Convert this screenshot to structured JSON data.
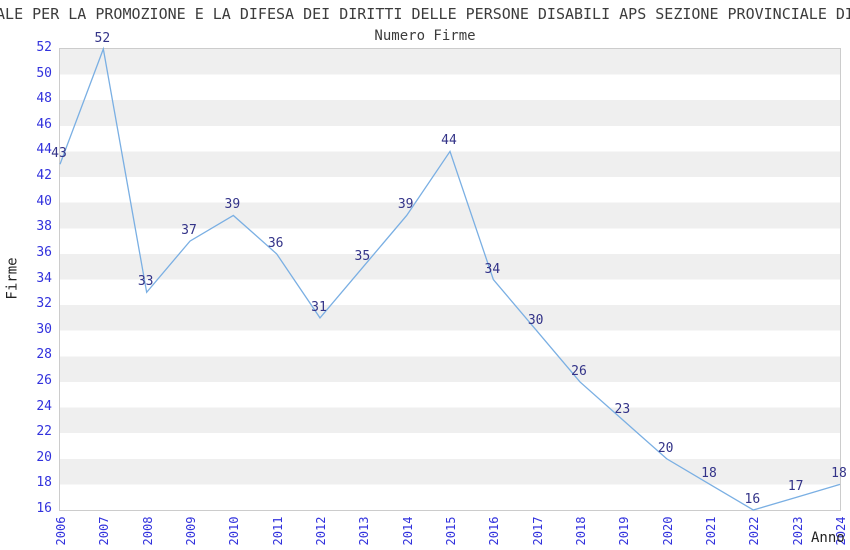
{
  "header": {
    "title": "ALE PER LA PROMOZIONE E LA DIFESA DEI DIRITTI DELLE PERSONE DISABILI APS SEZIONE PROVINCIALE DI",
    "subtitle": "Numero Firme"
  },
  "chart_data": {
    "type": "line",
    "title": "Numero Firme",
    "xlabel": "Anno",
    "ylabel": "Firme",
    "x": [
      2006,
      2007,
      2008,
      2009,
      2010,
      2011,
      2012,
      2013,
      2014,
      2015,
      2016,
      2017,
      2018,
      2019,
      2020,
      2021,
      2022,
      2023,
      2024
    ],
    "series": [
      {
        "name": "Numero Firme",
        "values": [
          43,
          52,
          33,
          37,
          39,
          36,
          31,
          35,
          39,
          44,
          34,
          30,
          26,
          23,
          20,
          18,
          16,
          17,
          18
        ]
      }
    ],
    "point_labels_visible": true,
    "ylim": [
      16,
      52
    ],
    "ytick_step": 2,
    "grid": "horizontal-bands",
    "legend_position": "none",
    "colors": {
      "line": "#7aafe3",
      "point_label": "#333388",
      "tick_label": "#3232dd",
      "band_gray": "#efefef",
      "band_white": "#ffffff",
      "plot_border": "#cccccc",
      "title_text": "#3c3c3c",
      "axis_title_text": "#222222",
      "background": "#ffffff"
    }
  }
}
